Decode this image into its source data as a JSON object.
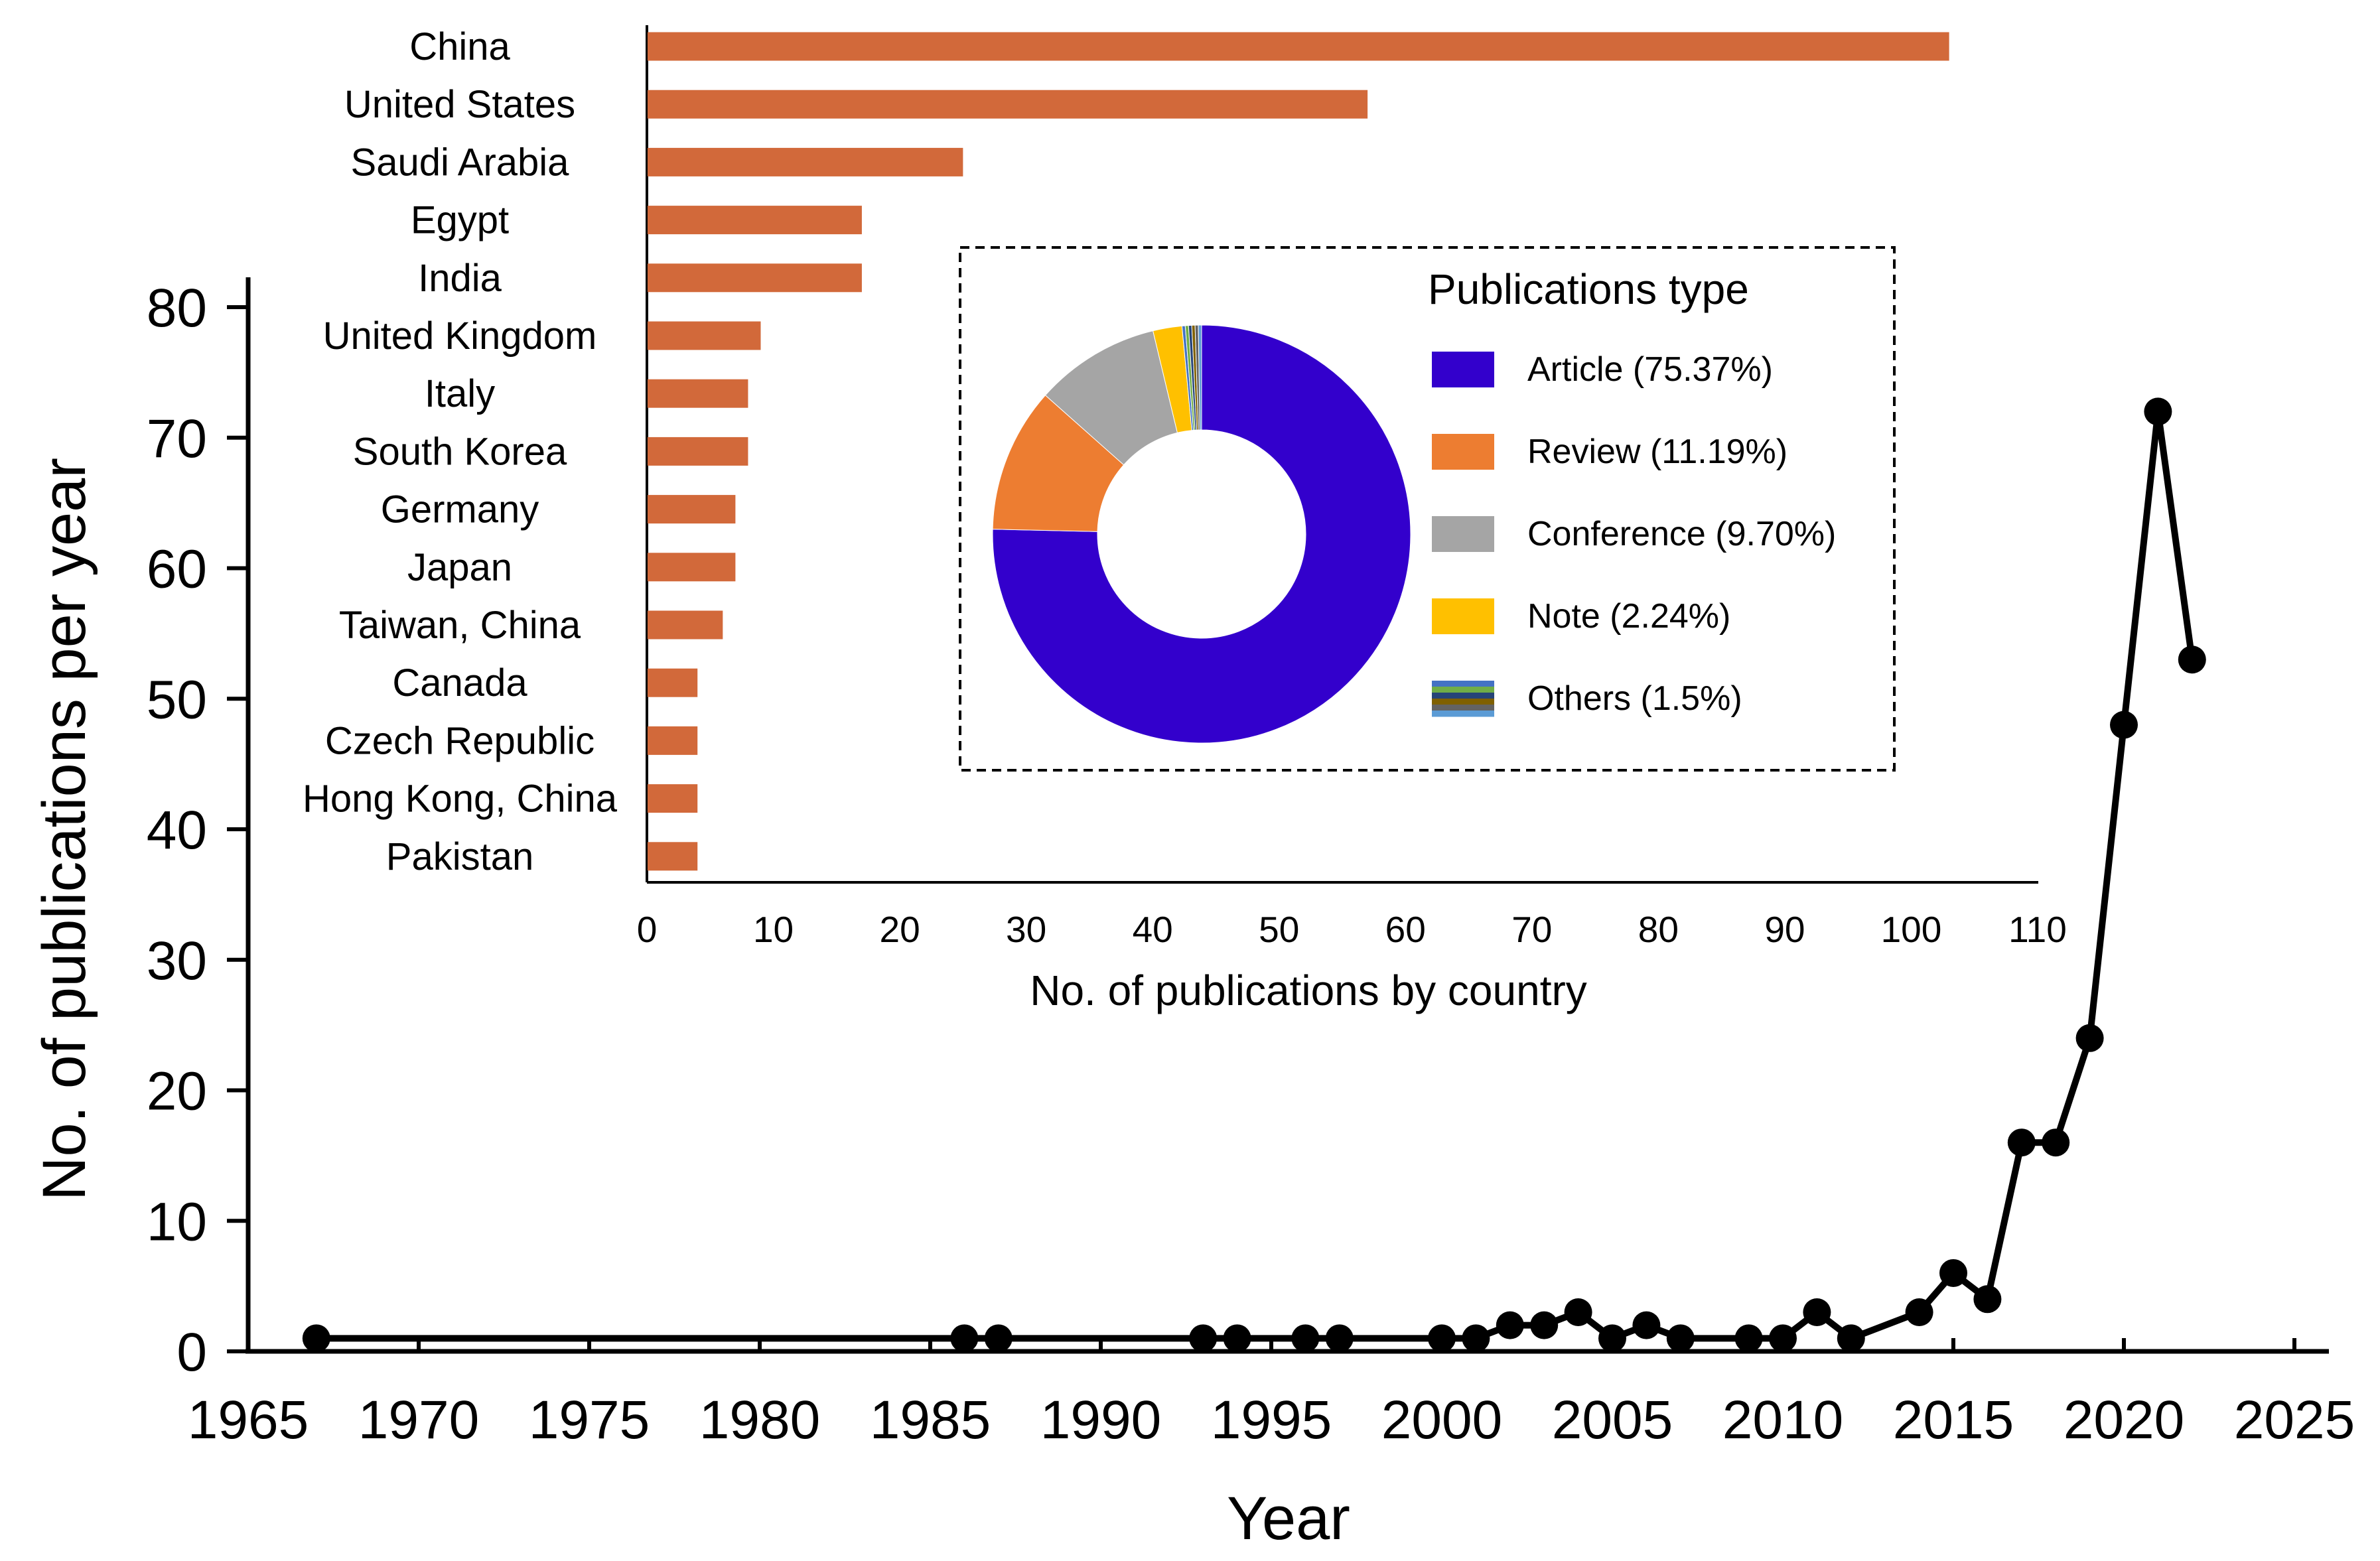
{
  "chart_data": [
    {
      "type": "line",
      "id": "main",
      "title": "",
      "xlabel": "Year",
      "ylabel": "No. of publications per year",
      "xlim": [
        1965,
        2025
      ],
      "ylim": [
        0,
        80
      ],
      "xticks": [
        1965,
        1970,
        1975,
        1980,
        1985,
        1990,
        1995,
        2000,
        2005,
        2010,
        2015,
        2020,
        2025
      ],
      "yticks": [
        0,
        10,
        20,
        30,
        40,
        50,
        60,
        70,
        80
      ],
      "x": [
        1967,
        1986,
        1987,
        1993,
        1994,
        1996,
        1997,
        2000,
        2001,
        2002,
        2003,
        2004,
        2005,
        2006,
        2007,
        2009,
        2010,
        2011,
        2012,
        2014,
        2015,
        2016,
        2017,
        2018,
        2019,
        2020,
        2021,
        2022
      ],
      "y": [
        1,
        1,
        1,
        1,
        1,
        1,
        1,
        1,
        1,
        2,
        2,
        3,
        1,
        2,
        1,
        1,
        1,
        3,
        1,
        3,
        6,
        4,
        16,
        16,
        24,
        48,
        72,
        53
      ],
      "color": "#000000"
    },
    {
      "type": "bar",
      "id": "countries",
      "orientation": "horizontal",
      "xlabel": "No. of publications by country",
      "xlim": [
        0,
        110
      ],
      "xticks": [
        0,
        10,
        20,
        30,
        40,
        50,
        60,
        70,
        80,
        90,
        100,
        110
      ],
      "categories": [
        "China",
        "United States",
        "Saudi Arabia",
        "Egypt",
        "India",
        "United Kingdom",
        "Italy",
        "South Korea",
        "Germany",
        "Japan",
        "Taiwan, China",
        "Canada",
        "Czech Republic",
        "Hong Kong, China",
        "Pakistan"
      ],
      "values": [
        103,
        57,
        25,
        17,
        17,
        9,
        8,
        8,
        7,
        7,
        6,
        4,
        4,
        4,
        4
      ],
      "color": "#d2693a"
    },
    {
      "type": "pie",
      "id": "pubtype",
      "donut": true,
      "legend_title": "Publications type",
      "legend_position": "right",
      "labels": [
        "Article (75.37%)",
        "Review (11.19%)",
        "Conference (9.70%)",
        "Note (2.24%)",
        "Others (1.5%)"
      ],
      "values": [
        75.37,
        11.19,
        9.7,
        2.24,
        1.5
      ],
      "colors": [
        "#3300cc",
        "#ed7d31",
        "#a5a5a5",
        "#ffc000",
        "#4a4a4a"
      ],
      "others_colors": [
        "#4472c4",
        "#70ad47",
        "#264478",
        "#7f6000",
        "#636363",
        "#5b9bd5"
      ]
    }
  ]
}
